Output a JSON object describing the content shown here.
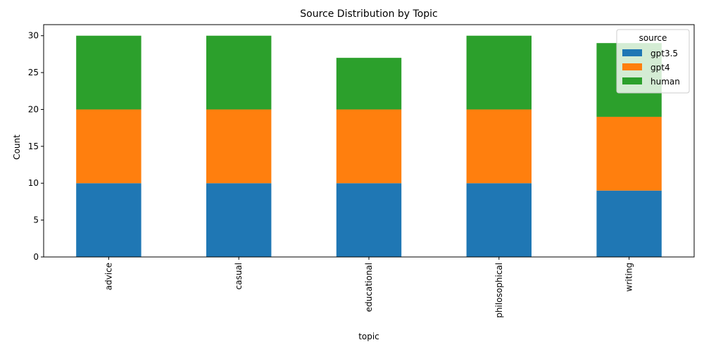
{
  "chart_data": {
    "type": "bar",
    "stacked": true,
    "title": "Source Distribution by Topic",
    "xlabel": "topic",
    "ylabel": "Count",
    "categories": [
      "advice",
      "casual",
      "educational",
      "philosophical",
      "writing"
    ],
    "ylim": [
      0,
      31.5
    ],
    "yticks": [
      0,
      5,
      10,
      15,
      20,
      25,
      30
    ],
    "grid": false,
    "legend": {
      "title": "source",
      "position": "top-right"
    },
    "series": [
      {
        "name": "gpt3.5",
        "color": "#1f77b4",
        "values": [
          10,
          10,
          10,
          10,
          9
        ]
      },
      {
        "name": "gpt4",
        "color": "#ff7f0e",
        "values": [
          10,
          10,
          10,
          10,
          10
        ]
      },
      {
        "name": "human",
        "color": "#2ca02c",
        "values": [
          10,
          10,
          7,
          10,
          10
        ]
      }
    ]
  }
}
